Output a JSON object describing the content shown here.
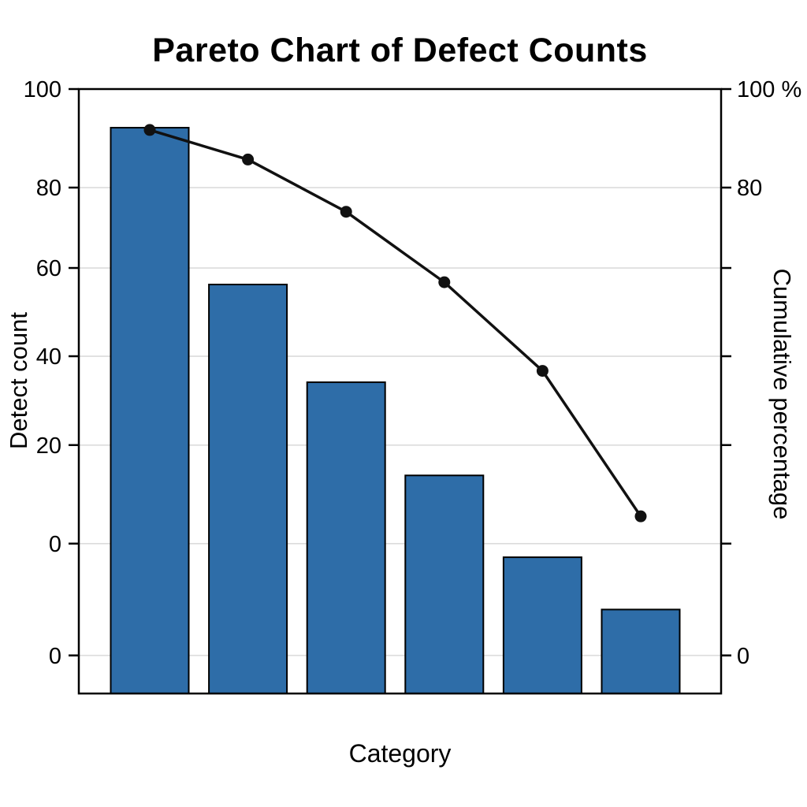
{
  "chart_data": {
    "type": "bar",
    "subtype": "pareto",
    "title": "Pareto Chart of Defect Counts",
    "xlabel": "Category",
    "ylabel": "Detect count",
    "ylabel_right": "Cumulative percentage",
    "categories": [
      "",
      "",
      "",
      "",
      "",
      ""
    ],
    "series": [
      {
        "name": "Detect count",
        "type": "bar",
        "values": [
          91.5,
          57,
          35.5,
          15,
          -3,
          -14.5
        ]
      },
      {
        "name": "Cumulative percentage",
        "type": "line",
        "values": [
          91,
          84.5,
          73,
          57.5,
          38,
          6
        ]
      }
    ],
    "ylim": [
      0,
      100
    ],
    "grid": true,
    "legend": "none",
    "colors": {
      "bar": "#2e6da8",
      "bar_edge": "#000000",
      "line": "#111111"
    },
    "left_ticks": {
      "labels": [
        "100",
        "80",
        "60",
        "40",
        "20",
        "0",
        "0"
      ],
      "fracs": [
        0,
        0.163,
        0.296,
        0.442,
        0.589,
        0.752,
        0.937
      ]
    },
    "right_ticks": {
      "labels": [
        "100 %",
        "80",
        "",
        "",
        "",
        "",
        "0"
      ],
      "fracs": [
        0,
        0.163,
        0.296,
        0.442,
        0.589,
        0.752,
        0.937
      ]
    }
  }
}
